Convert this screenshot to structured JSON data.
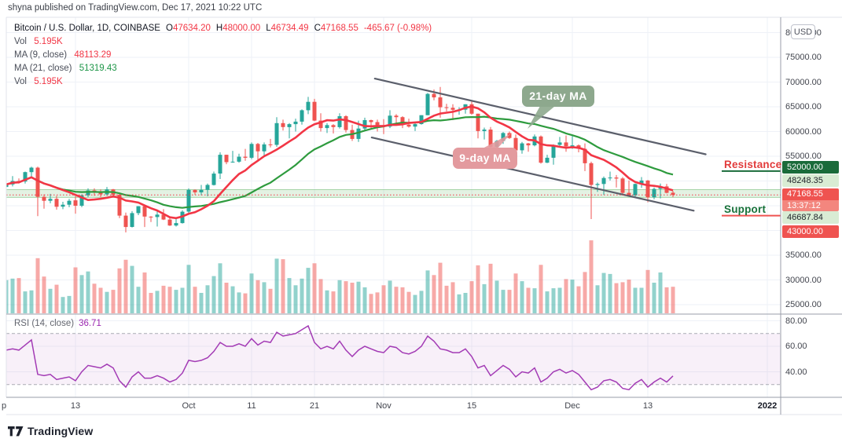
{
  "publisher": "shyna published on TradingView.com, Dec 17, 2021 10:22 UTC",
  "header": {
    "symbol": "Bitcoin / U.S. Dollar, 1D, COINBASE",
    "ohlc": {
      "o": {
        "label": "O",
        "value": "47634.20"
      },
      "h": {
        "label": "H",
        "value": "48000.00"
      },
      "l": {
        "label": "L",
        "value": "46734.49"
      },
      "c": {
        "label": "C",
        "value": "47168.55"
      }
    },
    "change": "-465.67 (-0.98%)"
  },
  "legend": {
    "vol_label": "Vol",
    "vol_value": "5.195K",
    "ma9_label": "MA (9, close)",
    "ma9_value": "48113.29",
    "ma21_label": "MA (21, close)",
    "ma21_value": "51319.43",
    "vol2_label": "Vol",
    "vol2_value": "5.195K"
  },
  "rsi_legend": {
    "label": "RSI (14, close)",
    "value": "36.71"
  },
  "annotations": {
    "resistance_label": "Resistance",
    "support_label": "Support",
    "ma21_callout": "21-day MA",
    "ma9_callout": "9-day MA"
  },
  "price_axis": {
    "currency_button": "USD",
    "plain_labels": [
      "80000.00",
      "75000.00",
      "70000.00",
      "65000.00",
      "60000.00",
      "55000.00",
      "35000.00",
      "30000.00",
      "25000.00"
    ],
    "badges": {
      "resistance": "52000.00",
      "zone_top": "48248.35",
      "last": "47168.55",
      "countdown": "13:37:12",
      "zone_bottom": "46687.84",
      "support": "43000.00"
    }
  },
  "rsi_axis_labels": [
    "80.00",
    "60.00",
    "40.00"
  ],
  "time_axis": [
    {
      "label": "p",
      "day": 0,
      "strong": false
    },
    {
      "label": "13",
      "day": 12,
      "strong": false
    },
    {
      "label": "Oct",
      "day": 30,
      "strong": false
    },
    {
      "label": "11",
      "day": 40,
      "strong": false
    },
    {
      "label": "21",
      "day": 50,
      "strong": false
    },
    {
      "label": "Nov",
      "day": 61,
      "strong": false
    },
    {
      "label": "15",
      "day": 75,
      "strong": false
    },
    {
      "label": "Dec",
      "day": 91,
      "strong": false
    },
    {
      "label": "13",
      "day": 103,
      "strong": false
    },
    {
      "label": "2022",
      "day": 122,
      "strong": true
    }
  ],
  "logo_text": "TradingView",
  "colors": {
    "up": "#26a69a",
    "down": "#ef5350",
    "ma9": "#f23645",
    "ma21": "#2e9b3e",
    "rsi": "#a33bb5",
    "channel": "#5b5f6b",
    "grid": "#eef1f7",
    "zone_fill": "rgba(128,198,128,0.22)",
    "zone_edge": "rgba(103,183,110,0.55)",
    "resistance_line": "#1a6b3a",
    "support_line": "#ef5350",
    "last_price_line": "#f23645",
    "separator": "#9a9ea8",
    "frame": "#e0e3eb",
    "rsi_band_fill": "rgba(160,60,180,0.08)",
    "rsi_dash": "#a9abb3"
  },
  "chart_data": {
    "type": "candlestick",
    "title": "Bitcoin / U.S. Dollar, 1D, COINBASE",
    "timeframe": "1D",
    "start_date": "2021-09-02",
    "end_date": "2021-12-17",
    "price_units": "USD (values stored in thousands)",
    "price_axis_range": [
      23100,
      83100
    ],
    "price_ticks": [
      25000,
      30000,
      35000,
      40000,
      45000,
      50000,
      55000,
      60000,
      65000,
      70000,
      75000,
      80000
    ],
    "candles": [
      [
        48.8,
        50.4,
        48.2,
        49.3
      ],
      [
        49.3,
        51.0,
        48.9,
        50.0
      ],
      [
        50.0,
        50.5,
        49.5,
        49.9
      ],
      [
        49.9,
        51.9,
        49.5,
        51.8
      ],
      [
        51.8,
        52.9,
        50.9,
        52.7
      ],
      [
        52.7,
        52.9,
        42.9,
        46.8
      ],
      [
        46.8,
        47.3,
        44.4,
        46.0
      ],
      [
        46.0,
        47.4,
        45.5,
        46.4
      ],
      [
        46.4,
        47.0,
        44.2,
        44.8
      ],
      [
        44.8,
        45.8,
        44.3,
        45.2
      ],
      [
        45.2,
        46.4,
        44.7,
        46.0
      ],
      [
        46.1,
        46.9,
        43.4,
        45.0
      ],
      [
        45.0,
        47.3,
        44.7,
        47.1
      ],
      [
        47.1,
        48.5,
        46.7,
        48.1
      ],
      [
        48.1,
        48.5,
        47.0,
        47.7
      ],
      [
        47.7,
        48.3,
        46.7,
        47.3
      ],
      [
        47.3,
        48.8,
        47.0,
        48.3
      ],
      [
        48.3,
        48.4,
        46.9,
        47.2
      ],
      [
        47.2,
        47.3,
        42.5,
        43.0
      ],
      [
        43.0,
        43.6,
        39.6,
        40.7
      ],
      [
        40.7,
        43.9,
        40.6,
        43.5
      ],
      [
        43.5,
        44.9,
        43.1,
        44.9
      ],
      [
        44.9,
        45.1,
        40.7,
        42.8
      ],
      [
        42.8,
        42.9,
        41.7,
        42.7
      ],
      [
        42.7,
        43.9,
        40.8,
        43.2
      ],
      [
        43.2,
        44.3,
        42.1,
        42.2
      ],
      [
        42.2,
        42.8,
        40.9,
        41.0
      ],
      [
        41.0,
        42.6,
        40.8,
        41.5
      ],
      [
        41.5,
        44.1,
        41.4,
        43.8
      ],
      [
        43.8,
        48.5,
        43.3,
        48.2
      ],
      [
        48.2,
        48.3,
        47.2,
        47.7
      ],
      [
        47.7,
        49.2,
        47.1,
        48.2
      ],
      [
        48.2,
        49.5,
        46.9,
        49.2
      ],
      [
        49.2,
        51.9,
        49.1,
        51.5
      ],
      [
        51.5,
        55.8,
        50.4,
        55.3
      ],
      [
        55.3,
        55.3,
        53.4,
        53.8
      ],
      [
        53.8,
        56.1,
        53.7,
        53.9
      ],
      [
        53.9,
        55.5,
        53.7,
        54.9
      ],
      [
        54.9,
        56.5,
        54.1,
        54.7
      ],
      [
        54.7,
        57.8,
        54.4,
        57.5
      ],
      [
        57.5,
        57.7,
        54.2,
        56.0
      ],
      [
        56.0,
        57.8,
        54.9,
        57.4
      ],
      [
        57.4,
        58.5,
        56.8,
        57.3
      ],
      [
        57.3,
        62.9,
        56.9,
        61.7
      ],
      [
        61.7,
        62.4,
        60.2,
        60.9
      ],
      [
        60.9,
        61.7,
        58.6,
        61.5
      ],
      [
        61.5,
        62.6,
        60.0,
        62.0
      ],
      [
        62.0,
        64.5,
        61.4,
        64.3
      ],
      [
        64.3,
        67.0,
        63.5,
        66.0
      ],
      [
        66.0,
        66.6,
        62.1,
        62.2
      ],
      [
        62.2,
        63.7,
        60.0,
        60.7
      ],
      [
        60.7,
        61.7,
        59.7,
        61.3
      ],
      [
        61.3,
        61.5,
        59.6,
        60.9
      ],
      [
        60.9,
        63.7,
        60.6,
        63.1
      ],
      [
        63.1,
        63.3,
        59.8,
        60.3
      ],
      [
        60.3,
        61.4,
        58.1,
        58.5
      ],
      [
        58.5,
        62.2,
        57.9,
        60.6
      ],
      [
        60.6,
        62.8,
        60.2,
        62.3
      ],
      [
        62.3,
        62.4,
        60.7,
        61.9
      ],
      [
        61.9,
        62.4,
        60.0,
        61.3
      ],
      [
        61.3,
        62.5,
        59.5,
        61.0
      ],
      [
        61.0,
        64.3,
        60.7,
        63.2
      ],
      [
        63.2,
        63.5,
        61.4,
        62.9
      ],
      [
        62.9,
        63.1,
        60.7,
        61.4
      ],
      [
        61.4,
        62.6,
        60.8,
        61.0
      ],
      [
        61.0,
        61.6,
        60.1,
        61.5
      ],
      [
        61.5,
        63.3,
        61.4,
        63.3
      ],
      [
        63.3,
        67.8,
        63.3,
        67.6
      ],
      [
        67.6,
        68.5,
        66.3,
        66.9
      ],
      [
        66.9,
        69.0,
        62.8,
        64.9
      ],
      [
        64.9,
        65.6,
        64.1,
        64.8
      ],
      [
        64.8,
        65.5,
        62.3,
        64.4
      ],
      [
        64.4,
        64.9,
        63.4,
        64.4
      ],
      [
        64.4,
        65.5,
        63.6,
        65.5
      ],
      [
        65.5,
        66.3,
        63.4,
        63.6
      ],
      [
        63.6,
        63.6,
        58.6,
        60.1
      ],
      [
        60.1,
        60.8,
        58.4,
        60.4
      ],
      [
        60.4,
        60.9,
        56.5,
        56.9
      ],
      [
        56.9,
        58.3,
        55.6,
        58.1
      ],
      [
        58.1,
        59.9,
        57.5,
        59.7
      ],
      [
        59.7,
        60.0,
        58.5,
        58.7
      ],
      [
        58.7,
        59.4,
        55.6,
        56.2
      ],
      [
        56.2,
        57.9,
        55.5,
        57.6
      ],
      [
        57.6,
        57.7,
        55.9,
        57.2
      ],
      [
        57.2,
        59.4,
        57.0,
        59.0
      ],
      [
        59.0,
        59.2,
        53.5,
        53.7
      ],
      [
        53.7,
        55.3,
        53.6,
        54.7
      ],
      [
        54.7,
        57.4,
        53.3,
        57.3
      ],
      [
        57.3,
        58.9,
        56.8,
        57.8
      ],
      [
        57.8,
        59.2,
        55.9,
        57.0
      ],
      [
        57.0,
        59.1,
        56.5,
        57.2
      ],
      [
        57.2,
        57.4,
        55.8,
        56.5
      ],
      [
        56.5,
        57.6,
        52.0,
        53.6
      ],
      [
        53.6,
        53.9,
        42.3,
        49.2
      ],
      [
        49.2,
        49.7,
        47.8,
        49.4
      ],
      [
        49.4,
        50.9,
        47.2,
        50.6
      ],
      [
        50.6,
        51.9,
        50.1,
        50.7
      ],
      [
        50.7,
        51.2,
        48.7,
        50.5
      ],
      [
        50.5,
        50.8,
        47.3,
        47.6
      ],
      [
        47.6,
        50.1,
        47.0,
        47.1
      ],
      [
        47.1,
        49.5,
        46.8,
        49.4
      ],
      [
        49.4,
        50.8,
        48.6,
        50.1
      ],
      [
        50.1,
        50.2,
        45.7,
        46.7
      ],
      [
        46.7,
        48.7,
        46.3,
        48.4
      ],
      [
        48.4,
        49.5,
        46.5,
        48.9
      ],
      [
        48.9,
        49.4,
        47.5,
        47.6
      ],
      [
        47.634,
        48.0,
        46.734,
        47.168
      ]
    ],
    "volumes_k": [
      6.5,
      6.8,
      6.9,
      4.3,
      4.5,
      10.8,
      7.2,
      4.8,
      5.6,
      3.2,
      3.4,
      9.0,
      7.5,
      8.2,
      5.8,
      5.0,
      4.2,
      4.6,
      8.8,
      10.5,
      9.3,
      5.2,
      8.0,
      4.0,
      4.4,
      5.4,
      5.2,
      4.6,
      5.0,
      9.5,
      5.2,
      4.0,
      5.5,
      7.3,
      9.8,
      6.0,
      5.3,
      4.1,
      3.9,
      7.8,
      6.5,
      6.1,
      4.8,
      10.7,
      10.6,
      6.9,
      5.5,
      6.8,
      8.9,
      9.8,
      6.7,
      4.5,
      4.3,
      6.5,
      6.3,
      6.0,
      6.2,
      5.1,
      3.8,
      4.1,
      5.5,
      6.4,
      5.2,
      5.1,
      4.2,
      3.6,
      4.4,
      8.4,
      7.5,
      9.9,
      5.4,
      6.1,
      3.7,
      4.0,
      6.3,
      9.4,
      5.7,
      9.7,
      6.4,
      4.6,
      4.6,
      7.8,
      6.3,
      5.0,
      4.9,
      9.5,
      4.3,
      4.9,
      5.0,
      6.7,
      6.6,
      5.3,
      8.1,
      14.3,
      5.5,
      7.9,
      7.7,
      5.9,
      6.1,
      6.6,
      5.0,
      5.0,
      8.5,
      6.0,
      8.0,
      5.1,
      5.195
    ],
    "rsi": [
      57,
      58,
      57,
      61,
      65,
      38,
      37,
      38,
      34,
      35,
      36,
      33,
      40,
      45,
      44,
      43,
      46,
      43,
      33,
      28,
      36,
      40,
      35,
      35,
      37,
      35,
      32,
      34,
      39,
      49,
      48,
      49,
      51,
      56,
      63,
      60,
      60,
      62,
      60,
      66,
      61,
      64,
      63,
      71,
      68,
      69,
      70,
      73,
      76,
      63,
      58,
      60,
      58,
      64,
      57,
      52,
      57,
      60,
      58,
      56,
      55,
      60,
      59,
      55,
      54,
      56,
      60,
      68,
      64,
      58,
      57,
      55,
      55,
      58,
      52,
      43,
      45,
      37,
      41,
      45,
      42,
      36,
      40,
      39,
      43,
      32,
      35,
      40,
      42,
      39,
      41,
      38,
      32,
      26,
      28,
      33,
      34,
      32,
      27,
      26,
      31,
      34,
      28,
      32,
      35,
      32,
      36.71
    ],
    "rsi_current": 36.71,
    "rsi_bands": {
      "upper": 70,
      "lower": 30,
      "axis_labels": [
        80,
        60,
        40
      ]
    },
    "ma9_current": 48113.29,
    "ma21_current": 51319.43,
    "volume_current_k": 5.195,
    "levels": {
      "resistance": 52000,
      "support": 43000,
      "zone_top": 48248.35,
      "zone_bottom": 46687.84,
      "last_price": 47168.55
    },
    "channel": {
      "upper": {
        "d1": 59.6,
        "p1": 70700,
        "d2": 112.2,
        "p2": 55400
      },
      "lower": {
        "d1": 59.1,
        "p1": 58800,
        "d2": 110.3,
        "p2": 44000
      }
    },
    "callout_tails": {
      "ma21": [
        [
          687,
          135
        ],
        [
          706,
          135
        ],
        [
          671,
          164
        ]
      ],
      "ma9": [
        [
          612,
          190
        ],
        [
          632,
          190
        ],
        [
          650,
          170
        ]
      ]
    }
  }
}
